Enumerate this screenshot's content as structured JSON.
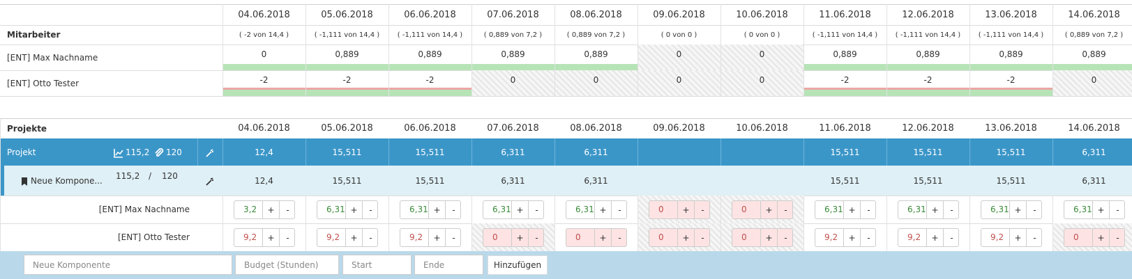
{
  "top": {
    "header": "Mitarbeiter",
    "dates": [
      "04.06.2018",
      "05.06.2018",
      "06.06.2018",
      "07.06.2018",
      "08.06.2018",
      "09.06.2018",
      "10.06.2018",
      "11.06.2018",
      "12.06.2018",
      "13.06.2018",
      "14.06.2018"
    ],
    "summaries": [
      "( -2 von 14,4 )",
      "( -1,111 von 14,4 )",
      "( -1,111 von 14,4 )",
      "( 0,889 von 7,2 )",
      "( 0,889 von 7,2 )",
      "( 0 von 0 )",
      "( 0 von 0 )",
      "( -1,111 von 14,4 )",
      "( -1,111 von 14,4 )",
      "( -1,111 von 14,4 )",
      "( 0,889 von 7,2 )"
    ],
    "rows": [
      {
        "name": "[ENT] Max Nachname",
        "cells": [
          {
            "text": "0",
            "hatched": false,
            "bar": "#b7e4b7"
          },
          {
            "text": "0,889",
            "hatched": false,
            "bar": "#b7e4b7"
          },
          {
            "text": "0,889",
            "hatched": false,
            "bar": "#b7e4b7"
          },
          {
            "text": "0,889",
            "hatched": false,
            "bar": "#b7e4b7"
          },
          {
            "text": "0,889",
            "hatched": false,
            "bar": "#b7e4b7"
          },
          {
            "text": "0",
            "hatched": true
          },
          {
            "text": "0",
            "hatched": true
          },
          {
            "text": "0,889",
            "hatched": false,
            "bar": "#b7e4b7"
          },
          {
            "text": "0,889",
            "hatched": false,
            "bar": "#b7e4b7"
          },
          {
            "text": "0,889",
            "hatched": false,
            "bar": "#b7e4b7"
          },
          {
            "text": "0,889",
            "hatched": false,
            "bar": "#b7e4b7"
          }
        ]
      },
      {
        "name": "[ENT] Otto Tester",
        "cells": [
          {
            "text": "-2",
            "hatched": false,
            "bar": "#b7e4b7",
            "line": "#eda5a5"
          },
          {
            "text": "-2",
            "hatched": false,
            "bar": "#b7e4b7",
            "line": "#eda5a5"
          },
          {
            "text": "-2",
            "hatched": false,
            "bar": "#b7e4b7",
            "line": "#eda5a5"
          },
          {
            "text": "0",
            "hatched": true
          },
          {
            "text": "0",
            "hatched": true
          },
          {
            "text": "0",
            "hatched": true
          },
          {
            "text": "0",
            "hatched": true
          },
          {
            "text": "-2",
            "hatched": false,
            "bar": "#b7e4b7",
            "line": "#eda5a5"
          },
          {
            "text": "-2",
            "hatched": false,
            "bar": "#b7e4b7",
            "line": "#eda5a5"
          },
          {
            "text": "-2",
            "hatched": false,
            "bar": "#b7e4b7",
            "line": "#eda5a5"
          },
          {
            "text": "0",
            "hatched": true
          }
        ]
      }
    ]
  },
  "projects": {
    "header": "Projekte",
    "dates": [
      "04.06.2018",
      "05.06.2018",
      "06.06.2018",
      "07.06.2018",
      "08.06.2018",
      "09.06.2018",
      "10.06.2018",
      "11.06.2018",
      "12.06.2018",
      "13.06.2018",
      "14.06.2018"
    ],
    "project": {
      "name": "Projekt",
      "hours": "115,2",
      "budget": "120",
      "values": [
        "12,4",
        "15,511",
        "15,511",
        "6,311",
        "6,311",
        null,
        null,
        "15,511",
        "15,511",
        "15,511",
        "6,311"
      ]
    },
    "component": {
      "name": "Neue Kompone...",
      "hours": "115,2",
      "separator": "/",
      "budget": "120",
      "values": [
        "12,4",
        "15,511",
        "15,511",
        "6,311",
        "6,311",
        null,
        null,
        "15,511",
        "15,511",
        "15,511",
        "6,311"
      ]
    },
    "buttons": {
      "plus": "+",
      "minus": "-"
    },
    "employees": [
      {
        "name": "[ENT] Max Nachname",
        "cells": [
          {
            "value": "3,2",
            "color": "#3a8a3a",
            "fill": "#ffffff",
            "hatched": false
          },
          {
            "value": "6,311",
            "color": "#3a8a3a",
            "fill": "#ffffff",
            "hatched": false
          },
          {
            "value": "6,311",
            "color": "#3a8a3a",
            "fill": "#ffffff",
            "hatched": false
          },
          {
            "value": "6,311",
            "color": "#3a8a3a",
            "fill": "#ffffff",
            "hatched": false
          },
          {
            "value": "6,311",
            "color": "#3a8a3a",
            "fill": "#ffffff",
            "hatched": false
          },
          {
            "value": "0",
            "color": "#c0504d",
            "fill": "#fde3e3",
            "hatched": true
          },
          {
            "value": "0",
            "color": "#c0504d",
            "fill": "#fde3e3",
            "hatched": true
          },
          {
            "value": "6,311",
            "color": "#3a8a3a",
            "fill": "#ffffff",
            "hatched": false
          },
          {
            "value": "6,311",
            "color": "#3a8a3a",
            "fill": "#ffffff",
            "hatched": false
          },
          {
            "value": "6,311",
            "color": "#3a8a3a",
            "fill": "#ffffff",
            "hatched": false
          },
          {
            "value": "6,311",
            "color": "#3a8a3a",
            "fill": "#ffffff",
            "hatched": false
          }
        ]
      },
      {
        "name": "[ENT] Otto Tester",
        "cells": [
          {
            "value": "9,2",
            "color": "#c0504d",
            "fill": "#ffffff",
            "hatched": false
          },
          {
            "value": "9,2",
            "color": "#c0504d",
            "fill": "#ffffff",
            "hatched": false
          },
          {
            "value": "9,2",
            "color": "#c0504d",
            "fill": "#ffffff",
            "hatched": false
          },
          {
            "value": "0",
            "color": "#c0504d",
            "fill": "#fde3e3",
            "hatched": true
          },
          {
            "value": "0",
            "color": "#c0504d",
            "fill": "#fde3e3",
            "hatched": false
          },
          {
            "value": "0",
            "color": "#c0504d",
            "fill": "#fde3e3",
            "hatched": true
          },
          {
            "value": "0",
            "color": "#c0504d",
            "fill": "#fde3e3",
            "hatched": true
          },
          {
            "value": "9,2",
            "color": "#c0504d",
            "fill": "#ffffff",
            "hatched": false
          },
          {
            "value": "9,2",
            "color": "#c0504d",
            "fill": "#ffffff",
            "hatched": false
          },
          {
            "value": "9,2",
            "color": "#c0504d",
            "fill": "#ffffff",
            "hatched": false
          },
          {
            "value": "0",
            "color": "#c0504d",
            "fill": "#fde3e3",
            "hatched": true
          }
        ]
      }
    ]
  },
  "form": {
    "placeholders": [
      "Neue Komponente",
      "Budget (Stunden)",
      "Start",
      "Ende"
    ],
    "button": "Hinzufügen"
  }
}
